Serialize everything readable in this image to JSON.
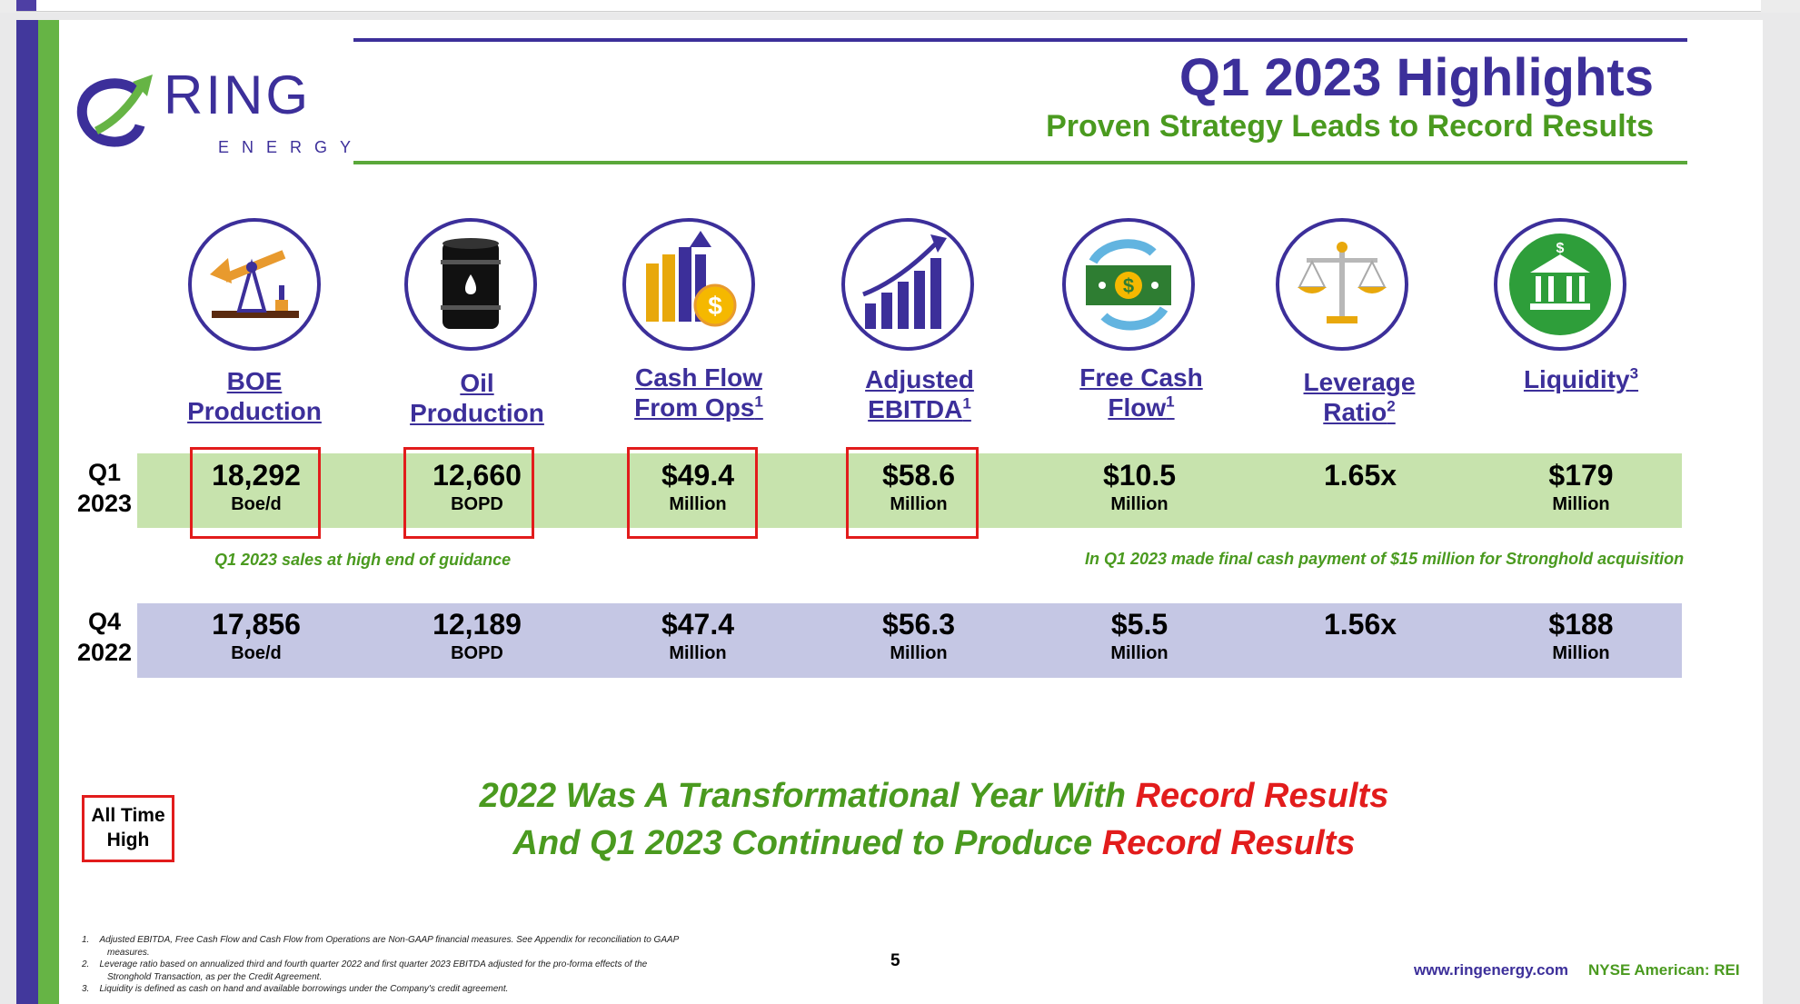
{
  "header": {
    "logo_word": "RING",
    "logo_sub": "ENERGY",
    "title": "Q1 2023 Highlights",
    "subtitle": "Proven Strategy Leads to Record Results"
  },
  "metrics": [
    {
      "line1": "BOE",
      "line2": "Production",
      "sup": "",
      "icon": "oil-pumpjack-icon"
    },
    {
      "line1": "Oil",
      "line2": "Production",
      "sup": "",
      "icon": "oil-barrel-icon"
    },
    {
      "line1": "Cash Flow",
      "line2": "From Ops",
      "sup": "1",
      "icon": "bar-chart-dollar-icon"
    },
    {
      "line1": "Adjusted",
      "line2": "EBITDA",
      "sup": "1",
      "icon": "growth-chart-icon"
    },
    {
      "line1": "Free Cash",
      "line2": "Flow",
      "sup": "1",
      "icon": "cash-cycle-icon"
    },
    {
      "line1": "Leverage",
      "line2": "Ratio",
      "sup": "2",
      "icon": "balance-scale-icon"
    },
    {
      "line1": "Liquidity",
      "line2": "",
      "sup": "3",
      "icon": "bank-icon"
    }
  ],
  "rows": [
    {
      "label1": "Q1",
      "label2": "2023",
      "cells": [
        {
          "value": "18,292",
          "unit": "Boe/d",
          "record": true
        },
        {
          "value": "12,660",
          "unit": "BOPD",
          "record": true
        },
        {
          "value": "$49.4",
          "unit": "Million",
          "record": true
        },
        {
          "value": "$58.6",
          "unit": "Million",
          "record": true
        },
        {
          "value": "$10.5",
          "unit": "Million",
          "record": false
        },
        {
          "value": "1.65x",
          "unit": "",
          "record": false
        },
        {
          "value": "$179",
          "unit": "Million",
          "record": false
        }
      ]
    },
    {
      "label1": "Q4",
      "label2": "2022",
      "cells": [
        {
          "value": "17,856",
          "unit": "Boe/d"
        },
        {
          "value": "12,189",
          "unit": "BOPD"
        },
        {
          "value": "$47.4",
          "unit": "Million"
        },
        {
          "value": "$56.3",
          "unit": "Million"
        },
        {
          "value": "$5.5",
          "unit": "Million"
        },
        {
          "value": "1.56x",
          "unit": ""
        },
        {
          "value": "$188",
          "unit": "Million"
        }
      ]
    }
  ],
  "notes": {
    "left": "Q1 2023 sales at high end of guidance",
    "right": "In Q1 2023 made final cash payment of $15 million for Stronghold acquisition"
  },
  "legend": {
    "line1": "All Time",
    "line2": "High"
  },
  "headline": {
    "line1_green": "2022 Was A Transformational Year With ",
    "line1_red": "Record Results",
    "line2_green": "And Q1 2023 Continued to Produce ",
    "line2_red": "Record Results"
  },
  "footnotes": [
    {
      "num": "1.",
      "text": "Adjusted EBITDA, Free Cash Flow and Cash Flow from Operations are Non-GAAP financial measures. See Appendix for reconciliation to GAAP measures."
    },
    {
      "num": "2.",
      "text": "Leverage ratio based on annualized third and fourth quarter 2022 and first quarter 2023 EBITDA adjusted for the pro-forma effects of the Stronghold Transaction, as per the Credit Agreement."
    },
    {
      "num": "3.",
      "text": "Liquidity is defined as cash on hand and available borrowings under the Company's credit agreement."
    }
  ],
  "page_number": "5",
  "website": "www.ringenergy.com",
  "exchange": "NYSE American: REI",
  "colors": {
    "purple": "#3c2f9a",
    "green": "#4a9a1f",
    "red": "#e21c1c",
    "q1_band": "#c7e3ad",
    "q4_band": "#c5c7e4"
  }
}
